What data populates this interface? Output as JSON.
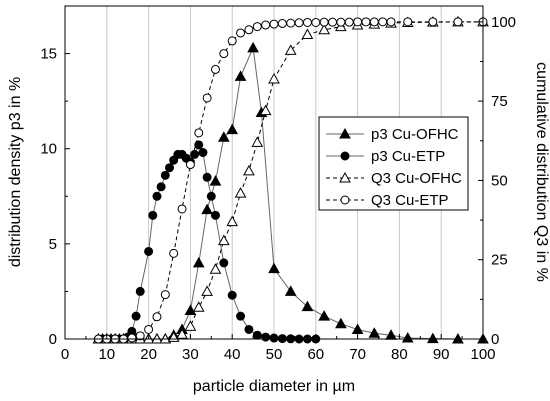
{
  "chart_data": {
    "type": "line",
    "xlabel": "particle diameter in µm",
    "ylabel_left": "distribution density p3 in %",
    "ylabel_right": "cumulative distribution Q3 in %",
    "xlim": [
      0,
      100
    ],
    "ylim_left": [
      0,
      17.5
    ],
    "ylim_right": [
      0,
      105
    ],
    "x_ticks": [
      "0",
      "10",
      "20",
      "30",
      "40",
      "50",
      "60",
      "70",
      "80",
      "90",
      "100"
    ],
    "y_left_ticks": [
      "0",
      "5",
      "10",
      "15"
    ],
    "y_right_ticks": [
      "0",
      "25",
      "50",
      "75",
      "100"
    ],
    "grid": "vertical",
    "legend_position": "right",
    "series": [
      {
        "name": "p3 Cu-OFHC",
        "axis": "left",
        "marker": "filled-triangle",
        "line": "solid",
        "x": [
          8,
          9,
          10,
          11,
          12,
          13,
          14,
          15,
          16,
          17,
          18,
          20,
          22,
          24,
          26,
          28,
          30,
          32,
          34,
          36,
          38,
          40,
          42,
          45,
          47,
          50,
          54,
          58,
          62,
          66,
          70,
          74,
          78,
          82,
          88,
          94,
          100
        ],
        "values": [
          0,
          0,
          0,
          0,
          0,
          0,
          0,
          0,
          0,
          0,
          0,
          0,
          0,
          0,
          0.2,
          0.5,
          1.5,
          4.0,
          6.8,
          8.3,
          10.6,
          11.0,
          13.8,
          15.3,
          11.9,
          3.7,
          2.5,
          1.7,
          1.2,
          0.8,
          0.5,
          0.3,
          0.2,
          0.05,
          0.02,
          0,
          0
        ]
      },
      {
        "name": "p3 Cu-ETP",
        "axis": "left",
        "marker": "filled-circle",
        "line": "solid",
        "x": [
          8,
          9,
          10,
          11,
          12,
          13,
          14,
          15,
          16,
          17,
          18,
          20,
          21,
          22,
          23,
          24,
          25,
          26,
          27,
          28,
          29,
          30,
          31,
          32,
          33,
          34,
          35,
          36,
          38,
          40,
          42,
          44,
          46,
          48,
          50,
          52,
          54,
          56,
          58,
          60
        ],
        "values": [
          0,
          0,
          0,
          0,
          0,
          0,
          0,
          0.1,
          0.4,
          1.2,
          2.5,
          4.6,
          6.5,
          7.5,
          8.0,
          8.6,
          9.0,
          9.4,
          9.7,
          9.7,
          9.5,
          9.3,
          9.7,
          10.2,
          9.8,
          8.5,
          7.5,
          6.5,
          4.0,
          2.3,
          1.2,
          0.5,
          0.2,
          0.1,
          0.05,
          0.02,
          0.01,
          0,
          0,
          0
        ]
      },
      {
        "name": "Q3 Cu-OFHC",
        "axis": "right",
        "marker": "open-triangle",
        "line": "dashed",
        "x": [
          8,
          10,
          12,
          14,
          16,
          18,
          20,
          22,
          24,
          26,
          28,
          30,
          32,
          34,
          36,
          38,
          40,
          42,
          44,
          46,
          48,
          50,
          54,
          58,
          62,
          66,
          70,
          74,
          78,
          82,
          88,
          94,
          100
        ],
        "values": [
          0,
          0,
          0,
          0,
          0,
          0,
          0,
          0,
          0,
          0.5,
          1.5,
          4,
          10,
          15,
          22,
          31,
          37,
          46,
          53,
          62,
          72,
          82,
          91,
          96,
          97.5,
          98.5,
          99,
          99.3,
          99.6,
          99.8,
          99.9,
          100,
          100
        ]
      },
      {
        "name": "Q3 Cu-ETP",
        "axis": "right",
        "marker": "open-circle",
        "line": "dashed",
        "x": [
          8,
          10,
          12,
          14,
          16,
          18,
          20,
          22,
          24,
          26,
          28,
          30,
          32,
          34,
          36,
          38,
          40,
          42,
          44,
          46,
          48,
          50,
          52,
          54,
          56,
          58,
          60,
          62,
          64,
          66,
          68,
          70,
          72,
          74,
          76,
          78,
          82,
          88,
          94,
          100
        ],
        "values": [
          0,
          0,
          0,
          0,
          0.3,
          1,
          3,
          7,
          14,
          27,
          41,
          55,
          65,
          76,
          85,
          90,
          94,
          96.5,
          97.5,
          98.5,
          99,
          99.3,
          99.5,
          99.6,
          99.7,
          99.8,
          99.8,
          99.9,
          99.9,
          99.9,
          99.9,
          100,
          100,
          100,
          100,
          100,
          100,
          100,
          100,
          100
        ]
      }
    ]
  }
}
